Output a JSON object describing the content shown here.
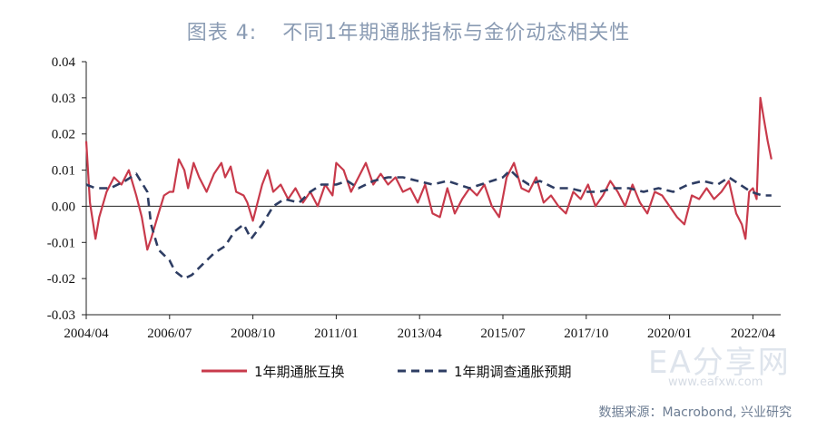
{
  "title": {
    "label": "图表 4:",
    "text": "不同1年期通胀指标与金价动态相关性"
  },
  "source": "数据来源：Macrobond, 兴业研究",
  "watermark": {
    "main": "EA分享网",
    "url": "www.eafxw.com"
  },
  "colors": {
    "series1": "#c83a4b",
    "series2": "#2e3d63",
    "axis": "#222222"
  },
  "chart_data": {
    "type": "line",
    "xlabel": "",
    "ylabel": "",
    "ylim": [
      -0.03,
      0.04
    ],
    "xlim": [
      2004.25,
      2023.0
    ],
    "grid": false,
    "legend_position": "bottom",
    "y_ticks": [
      "0.04",
      "0.03",
      "0.02",
      "0.01",
      "0.00",
      "-0.01",
      "-0.02",
      "-0.03"
    ],
    "y_tick_values": [
      0.04,
      0.03,
      0.02,
      0.01,
      0.0,
      -0.01,
      -0.02,
      -0.03
    ],
    "x_ticks": [
      "2004/04",
      "2006/07",
      "2008/10",
      "2011/01",
      "2013/04",
      "2015/07",
      "2017/10",
      "2020/01",
      "2022/04"
    ],
    "x_tick_values": [
      2004.25,
      2006.5,
      2008.75,
      2011.0,
      2013.25,
      2015.5,
      2017.75,
      2020.0,
      2022.25
    ],
    "series": [
      {
        "name": "1年期通胀互换",
        "style": "solid",
        "x": [
          2004.25,
          2004.35,
          2004.5,
          2004.6,
          2004.8,
          2005.0,
          2005.2,
          2005.4,
          2005.6,
          2005.75,
          2005.9,
          2006.0,
          2006.2,
          2006.35,
          2006.5,
          2006.6,
          2006.75,
          2006.9,
          2007.0,
          2007.15,
          2007.3,
          2007.5,
          2007.7,
          2007.9,
          2008.0,
          2008.15,
          2008.3,
          2008.5,
          2008.6,
          2008.75,
          2008.85,
          2009.0,
          2009.15,
          2009.3,
          2009.5,
          2009.7,
          2009.9,
          2010.1,
          2010.3,
          2010.5,
          2010.7,
          2010.9,
          2011.0,
          2011.2,
          2011.4,
          2011.6,
          2011.8,
          2012.0,
          2012.2,
          2012.4,
          2012.6,
          2012.8,
          2013.0,
          2013.2,
          2013.4,
          2013.6,
          2013.8,
          2014.0,
          2014.2,
          2014.4,
          2014.6,
          2014.8,
          2015.0,
          2015.2,
          2015.4,
          2015.6,
          2015.8,
          2016.0,
          2016.2,
          2016.4,
          2016.6,
          2016.8,
          2017.0,
          2017.2,
          2017.4,
          2017.6,
          2017.8,
          2018.0,
          2018.2,
          2018.4,
          2018.6,
          2018.8,
          2019.0,
          2019.2,
          2019.4,
          2019.6,
          2019.8,
          2020.0,
          2020.2,
          2020.4,
          2020.6,
          2020.8,
          2021.0,
          2021.2,
          2021.4,
          2021.6,
          2021.8,
          2021.95,
          2022.05,
          2022.15,
          2022.25,
          2022.35,
          2022.45,
          2022.55,
          2022.65,
          2022.75
        ],
        "values": [
          0.018,
          0.001,
          -0.009,
          -0.003,
          0.004,
          0.008,
          0.006,
          0.01,
          0.003,
          -0.003,
          -0.012,
          -0.009,
          -0.002,
          0.003,
          0.004,
          0.004,
          0.013,
          0.01,
          0.005,
          0.012,
          0.008,
          0.004,
          0.009,
          0.012,
          0.008,
          0.011,
          0.004,
          0.003,
          0.001,
          -0.004,
          0.0,
          0.006,
          0.01,
          0.004,
          0.006,
          0.002,
          0.005,
          0.001,
          0.004,
          0.0,
          0.006,
          0.003,
          0.012,
          0.01,
          0.004,
          0.008,
          0.012,
          0.006,
          0.009,
          0.006,
          0.008,
          0.004,
          0.005,
          0.001,
          0.006,
          -0.002,
          -0.003,
          0.005,
          -0.002,
          0.002,
          0.005,
          0.003,
          0.006,
          0.0,
          -0.003,
          0.008,
          0.012,
          0.005,
          0.004,
          0.008,
          0.001,
          0.003,
          0.0,
          -0.002,
          0.004,
          0.002,
          0.006,
          0.0,
          0.003,
          0.007,
          0.004,
          0.0,
          0.006,
          0.001,
          -0.002,
          0.004,
          0.003,
          0.0,
          -0.003,
          -0.005,
          0.003,
          0.002,
          0.005,
          0.002,
          0.004,
          0.007,
          -0.002,
          -0.005,
          -0.009,
          0.004,
          0.005,
          0.002,
          0.03,
          0.024,
          0.018,
          0.013
        ]
      },
      {
        "name": "1年期调查通胀预期",
        "style": "dashed",
        "x": [
          2004.25,
          2004.5,
          2004.9,
          2005.3,
          2005.6,
          2005.9,
          2006.0,
          2006.2,
          2006.5,
          2006.65,
          2006.9,
          2007.1,
          2007.4,
          2007.7,
          2008.0,
          2008.25,
          2008.5,
          2008.7,
          2008.85,
          2009.0,
          2009.3,
          2009.6,
          2010.0,
          2010.3,
          2010.6,
          2011.0,
          2011.3,
          2011.6,
          2012.0,
          2012.4,
          2012.8,
          2013.2,
          2013.6,
          2014.0,
          2014.3,
          2014.6,
          2014.9,
          2015.2,
          2015.5,
          2015.7,
          2015.9,
          2016.2,
          2016.5,
          2016.9,
          2017.3,
          2017.7,
          2018.1,
          2018.5,
          2018.9,
          2019.3,
          2019.7,
          2020.1,
          2020.5,
          2020.9,
          2021.3,
          2021.6,
          2021.9,
          2022.2,
          2022.5,
          2022.75
        ],
        "values": [
          0.006,
          0.005,
          0.005,
          0.007,
          0.009,
          0.004,
          -0.005,
          -0.012,
          -0.015,
          -0.018,
          -0.02,
          -0.019,
          -0.016,
          -0.013,
          -0.011,
          -0.007,
          -0.005,
          -0.009,
          -0.007,
          -0.005,
          0.0,
          0.002,
          0.001,
          0.004,
          0.006,
          0.006,
          0.007,
          0.005,
          0.007,
          0.008,
          0.008,
          0.007,
          0.006,
          0.007,
          0.006,
          0.005,
          0.006,
          0.007,
          0.008,
          0.01,
          0.008,
          0.006,
          0.007,
          0.005,
          0.005,
          0.004,
          0.004,
          0.005,
          0.005,
          0.004,
          0.005,
          0.004,
          0.006,
          0.007,
          0.006,
          0.008,
          0.006,
          0.004,
          0.003,
          0.003
        ]
      }
    ]
  }
}
